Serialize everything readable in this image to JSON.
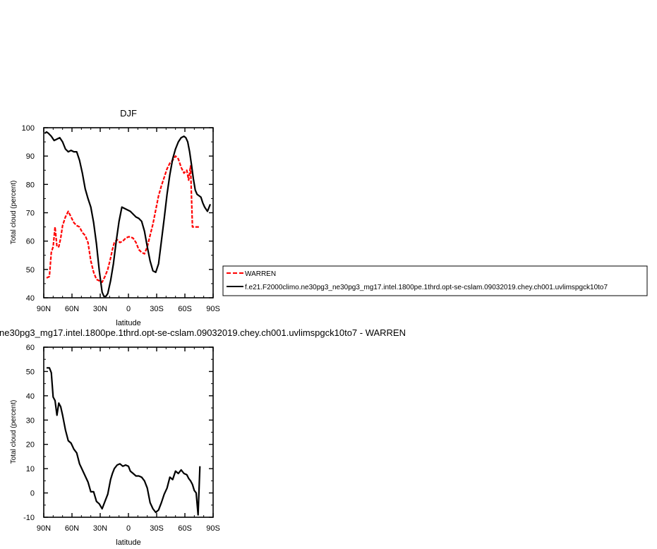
{
  "chart_data": [
    {
      "type": "line",
      "title": "DJF",
      "xlabel": "latitude",
      "ylabel": "Total cloud (percent)",
      "xlim": [
        90,
        -90
      ],
      "ylim": [
        40,
        100
      ],
      "xtick_values": [
        90,
        60,
        30,
        0,
        -30,
        -60,
        -90
      ],
      "xtick_labels": [
        "90N",
        "60N",
        "30N",
        "0",
        "30S",
        "60S",
        "90S"
      ],
      "yticks": [
        40,
        50,
        60,
        70,
        80,
        90,
        100
      ],
      "legend": "outside-right",
      "series": [
        {
          "name": "WARREN",
          "color": "#ff0000",
          "dash": "dashed",
          "x": [
            87,
            84,
            82,
            80,
            78,
            76,
            74,
            72,
            70,
            67,
            64,
            61,
            58,
            55,
            52,
            49,
            46,
            43,
            40,
            37,
            34,
            31,
            28,
            25,
            22,
            19,
            17,
            15,
            12,
            9,
            6,
            3,
            0,
            -2,
            -5,
            -8,
            -11,
            -14,
            -17,
            -20,
            -23,
            -26,
            -29,
            -32,
            -35,
            -38,
            -41,
            -44,
            -47,
            -50,
            -53,
            -56,
            -59,
            -62,
            -64,
            -66,
            -68,
            -70,
            -72,
            -74,
            -76
          ],
          "y": [
            47,
            47.5,
            56,
            58,
            65,
            58,
            58,
            61,
            65.5,
            68.5,
            70.5,
            68.5,
            66.5,
            65.5,
            65,
            63,
            62,
            59.5,
            53,
            49,
            46.5,
            46,
            45.5,
            47.5,
            50,
            54,
            57,
            59.5,
            60.5,
            59.5,
            60,
            61,
            61.5,
            61.5,
            61,
            59.5,
            57,
            56,
            55.5,
            58,
            62,
            66,
            71,
            76,
            79.5,
            82.5,
            85.5,
            87.5,
            88.5,
            90,
            89,
            86,
            84,
            85,
            81.5,
            86.5,
            65,
            65,
            65,
            65,
            65
          ]
        },
        {
          "name": "f.e21.F2000climo.ne30pg3_ne30pg3_mg17.intel.1800pe.1thrd.opt-se-cslam.09032019.chey.ch001.uvlimspgck10to7",
          "color": "#000000",
          "dash": "solid",
          "x": [
            89,
            87,
            85,
            82,
            79,
            76,
            73,
            70,
            67,
            64,
            61,
            58,
            55,
            52,
            49,
            46,
            43,
            40,
            37,
            34,
            31,
            28,
            26,
            24,
            22,
            19,
            16,
            13,
            10,
            7,
            4,
            1,
            -2,
            -5,
            -8,
            -11,
            -14,
            -17,
            -20,
            -23,
            -26,
            -29,
            -32,
            -35,
            -38,
            -41,
            -44,
            -47,
            -50,
            -53,
            -56,
            -59,
            -61,
            -63,
            -65,
            -67,
            -69,
            -71,
            -73,
            -75,
            -77,
            -79,
            -81,
            -84,
            -87
          ],
          "y": [
            98,
            98.5,
            98,
            97,
            95.5,
            96,
            96.5,
            95,
            92.5,
            91.5,
            92,
            91.5,
            91.5,
            88.5,
            84,
            78.5,
            75,
            72,
            66.5,
            59,
            49.5,
            42,
            40.5,
            40.5,
            41.5,
            46,
            52,
            60,
            67,
            72,
            71.5,
            71,
            70.5,
            69.5,
            68.5,
            68,
            67,
            63.5,
            58,
            53,
            49.5,
            49,
            52,
            60,
            68,
            76.5,
            83.5,
            89,
            92.5,
            95,
            96.5,
            97,
            96.5,
            95,
            91.5,
            87,
            82,
            78,
            76.5,
            76,
            75.5,
            73.5,
            72,
            70.5,
            73
          ]
        }
      ]
    },
    {
      "type": "line",
      "title": "ne30pg3_mg17.intel.1800pe.1thrd.opt-se-cslam.09032019.chey.ch001.uvlimspgck10to7 - WARREN",
      "xlabel": "latitude",
      "ylabel": "Total cloud (percent)",
      "xlim": [
        90,
        -90
      ],
      "ylim": [
        -10,
        60
      ],
      "xtick_values": [
        90,
        60,
        30,
        0,
        -30,
        -60,
        -90
      ],
      "xtick_labels": [
        "90N",
        "60N",
        "30N",
        "0",
        "30S",
        "60S",
        "90S"
      ],
      "yticks": [
        -10,
        0,
        10,
        20,
        30,
        40,
        50,
        60
      ],
      "series": [
        {
          "color": "#000000",
          "dash": "solid",
          "x": [
            87,
            84,
            82,
            80,
            78,
            76,
            74,
            72,
            70,
            67,
            64,
            61,
            58,
            55,
            52,
            49,
            46,
            43,
            40,
            37,
            34,
            31,
            28,
            25,
            22,
            19,
            17,
            15,
            12,
            9,
            6,
            3,
            0,
            -2,
            -5,
            -8,
            -11,
            -14,
            -17,
            -20,
            -23,
            -26,
            -29,
            -32,
            -35,
            -38,
            -41,
            -44,
            -47,
            -50,
            -53,
            -56,
            -59,
            -62,
            -64,
            -66,
            -68,
            -70,
            -72,
            -74,
            -76
          ],
          "y": [
            51.5,
            51.5,
            49.5,
            39.5,
            38,
            32,
            37,
            35.5,
            32,
            26,
            21.5,
            20.5,
            18,
            16.5,
            12,
            9.5,
            7,
            4.5,
            0.5,
            0.5,
            -3.5,
            -4.5,
            -6.5,
            -3.5,
            -0.5,
            5.5,
            8,
            10,
            11.5,
            12,
            11,
            11.5,
            11,
            9,
            8,
            7,
            7,
            6.5,
            5,
            2,
            -4,
            -6.5,
            -8,
            -7,
            -4,
            -0.5,
            2,
            6.5,
            5.5,
            9,
            8,
            9.5,
            8,
            7.5,
            6,
            5,
            3.5,
            1,
            0,
            -9,
            11
          ]
        }
      ]
    }
  ]
}
